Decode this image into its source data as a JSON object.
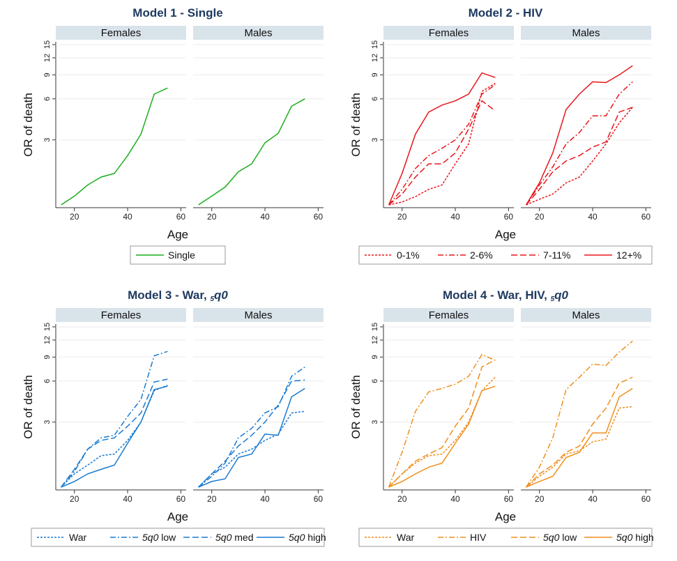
{
  "chart_data": [
    {
      "type": "line",
      "title": "Model 1 - Single",
      "panels": [
        "Females",
        "Males"
      ],
      "xlabel": "Age",
      "ylabel": "OR of death",
      "xlim": [
        13,
        62
      ],
      "ylim": [
        1,
        15
      ],
      "y_scale": "log",
      "x_ticks": [
        20,
        40,
        60
      ],
      "y_ticks": [
        3,
        6,
        9,
        12,
        15
      ],
      "grid": true,
      "legend_position": "bottom",
      "x": [
        15,
        20,
        25,
        30,
        35,
        40,
        45,
        50,
        55
      ],
      "series": [
        {
          "name": "Single",
          "color": "#1aad1a",
          "style": "solid",
          "females": [
            1.0,
            1.16,
            1.4,
            1.6,
            1.7,
            2.3,
            3.3,
            6.5,
            7.2
          ],
          "males": [
            1.0,
            1.16,
            1.35,
            1.75,
            2.0,
            2.85,
            3.35,
            5.3,
            6.0
          ]
        }
      ]
    },
    {
      "type": "line",
      "title": "Model 2 - HIV",
      "panels": [
        "Females",
        "Males"
      ],
      "xlabel": "Age",
      "ylabel": "OR of death",
      "xlim": [
        13,
        62
      ],
      "ylim": [
        1,
        15
      ],
      "y_scale": "log",
      "x_ticks": [
        20,
        40,
        60
      ],
      "y_ticks": [
        3,
        6,
        9,
        12,
        15
      ],
      "grid": true,
      "legend_position": "bottom",
      "x": [
        15,
        20,
        25,
        30,
        35,
        40,
        45,
        50,
        55
      ],
      "series": [
        {
          "name": "0-1%",
          "color": "#e8161a",
          "style": "dotted",
          "females": [
            1.0,
            1.05,
            1.15,
            1.3,
            1.4,
            2.0,
            2.8,
            6.8,
            7.8
          ],
          "males": [
            1.0,
            1.1,
            1.2,
            1.45,
            1.6,
            2.1,
            2.8,
            4.0,
            5.2
          ]
        },
        {
          "name": "2-6%",
          "color": "#e8161a",
          "style": "dashdot",
          "females": [
            1.0,
            1.3,
            1.85,
            2.3,
            2.6,
            3.0,
            3.9,
            6.5,
            7.6
          ],
          "males": [
            1.0,
            1.4,
            1.9,
            2.8,
            3.4,
            4.5,
            4.5,
            6.5,
            8.0
          ]
        },
        {
          "name": "7-11%",
          "color": "#e8161a",
          "style": "dashed",
          "females": [
            1.0,
            1.2,
            1.6,
            2.0,
            2.0,
            2.4,
            3.6,
            5.8,
            4.9
          ],
          "males": [
            1.0,
            1.3,
            1.75,
            2.1,
            2.3,
            2.65,
            2.9,
            4.8,
            5.2
          ]
        },
        {
          "name": "12+%",
          "color": "#e8161a",
          "style": "solid",
          "females": [
            1.0,
            1.7,
            3.3,
            4.8,
            5.4,
            5.8,
            6.5,
            9.3,
            8.6
          ],
          "males": [
            1.0,
            1.45,
            2.4,
            5.0,
            6.5,
            8.0,
            7.9,
            9.0,
            10.5
          ]
        }
      ]
    },
    {
      "type": "line",
      "title": "Model 3 - War, ",
      "title_italic": "5q0",
      "panels": [
        "Females",
        "Males"
      ],
      "xlabel": "Age",
      "ylabel": "OR of death",
      "xlim": [
        13,
        62
      ],
      "ylim": [
        1,
        15
      ],
      "y_scale": "log",
      "x_ticks": [
        20,
        40,
        60
      ],
      "y_ticks": [
        3,
        6,
        9,
        12,
        15
      ],
      "grid": true,
      "legend_position": "bottom",
      "x": [
        15,
        20,
        25,
        30,
        35,
        40,
        45,
        50,
        55
      ],
      "series": [
        {
          "name": "War",
          "color": "#1a7ad0",
          "style": "dotted",
          "females": [
            1.0,
            1.25,
            1.45,
            1.7,
            1.75,
            2.2,
            3.0,
            5.1,
            5.6
          ],
          "males": [
            1.0,
            1.25,
            1.4,
            1.75,
            1.9,
            2.2,
            2.45,
            3.5,
            3.6
          ]
        },
        {
          "name": "5q0 low",
          "color": "#1a7ad0",
          "style": "dashdot",
          "labelPrefix": "5q0",
          "labelSuffix": " low",
          "females": [
            1.0,
            1.3,
            1.9,
            2.3,
            2.4,
            3.3,
            4.4,
            9.2,
            9.9
          ],
          "males": [
            1.0,
            1.2,
            1.5,
            2.3,
            2.7,
            3.5,
            3.9,
            6.5,
            7.6
          ]
        },
        {
          "name": "5q0 med",
          "color": "#1a7ad0",
          "style": "dashed",
          "labelPrefix": "5q0",
          "labelSuffix": " med",
          "females": [
            1.0,
            1.35,
            1.9,
            2.2,
            2.3,
            2.8,
            3.5,
            5.9,
            6.2
          ],
          "males": [
            1.0,
            1.25,
            1.55,
            2.0,
            2.4,
            3.0,
            4.0,
            6.0,
            6.1
          ]
        },
        {
          "name": "5q0 high",
          "color": "#1a7ad0",
          "style": "solid",
          "labelPrefix": "5q0",
          "labelSuffix": " high",
          "females": [
            1.0,
            1.1,
            1.25,
            1.35,
            1.45,
            2.1,
            3.0,
            5.2,
            5.5
          ],
          "males": [
            1.0,
            1.1,
            1.15,
            1.65,
            1.75,
            2.45,
            2.4,
            4.6,
            5.3
          ]
        }
      ]
    },
    {
      "type": "line",
      "title": "Model 4 - War, HIV, ",
      "title_italic": "5q0",
      "panels": [
        "Females",
        "Males"
      ],
      "xlabel": "Age",
      "ylabel": "OR of death",
      "xlim": [
        13,
        62
      ],
      "ylim": [
        1,
        15
      ],
      "y_scale": "log",
      "x_ticks": [
        20,
        40,
        60
      ],
      "y_ticks": [
        3,
        6,
        9,
        12,
        15
      ],
      "grid": true,
      "legend_position": "bottom",
      "x": [
        15,
        20,
        25,
        30,
        35,
        40,
        45,
        50,
        55
      ],
      "series": [
        {
          "name": "War",
          "color": "#f08e1c",
          "style": "dotted",
          "females": [
            1.0,
            1.25,
            1.5,
            1.7,
            1.75,
            2.2,
            3.0,
            5.1,
            6.4
          ],
          "males": [
            1.0,
            1.2,
            1.4,
            1.75,
            1.85,
            2.15,
            2.25,
            3.8,
            3.9
          ]
        },
        {
          "name": "HIV",
          "color": "#f08e1c",
          "style": "dashdot",
          "females": [
            1.0,
            1.8,
            3.6,
            5.0,
            5.3,
            5.7,
            6.5,
            9.4,
            8.5
          ],
          "males": [
            1.0,
            1.4,
            2.3,
            5.2,
            6.4,
            8.0,
            7.8,
            9.8,
            11.8
          ]
        },
        {
          "name": "5q0 low",
          "color": "#f08e1c",
          "style": "dashed",
          "labelPrefix": "5q0",
          "labelSuffix": " low",
          "females": [
            1.0,
            1.25,
            1.55,
            1.75,
            1.95,
            2.8,
            3.8,
            7.6,
            8.6
          ],
          "males": [
            1.0,
            1.25,
            1.45,
            1.8,
            2.0,
            2.9,
            3.8,
            5.8,
            6.4
          ]
        },
        {
          "name": "5q0 high",
          "color": "#f08e1c",
          "style": "solid",
          "labelPrefix": "5q0",
          "labelSuffix": " high",
          "females": [
            1.0,
            1.1,
            1.25,
            1.4,
            1.5,
            2.1,
            2.9,
            5.1,
            5.5
          ],
          "males": [
            1.0,
            1.1,
            1.2,
            1.65,
            1.8,
            2.5,
            2.5,
            4.6,
            5.3
          ]
        }
      ]
    }
  ]
}
